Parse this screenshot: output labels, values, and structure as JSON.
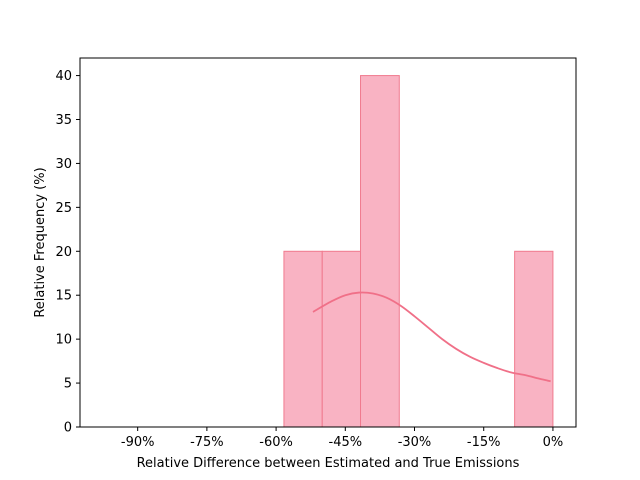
{
  "chart_data": {
    "type": "bar",
    "xlabel": "Relative Difference between Estimated and True Emissions",
    "ylabel": "Relative Frequency (%)",
    "x_tick_values": [
      -90,
      -75,
      -60,
      -45,
      -30,
      -15,
      0
    ],
    "x_tick_labels": [
      "-90%",
      "-75%",
      "-60%",
      "-45%",
      "-30%",
      "-15%",
      "0%"
    ],
    "xlim": [
      -102.5,
      5
    ],
    "y_ticks": [
      0,
      5,
      10,
      15,
      20,
      25,
      30,
      35,
      40
    ],
    "ylim": [
      0,
      42
    ],
    "bins": [
      {
        "x0": -100,
        "x1": -91.7,
        "value": 0
      },
      {
        "x0": -91.7,
        "x1": -83.3,
        "value": 0
      },
      {
        "x0": -83.3,
        "x1": -75,
        "value": 0
      },
      {
        "x0": -75,
        "x1": -66.7,
        "value": 0
      },
      {
        "x0": -66.7,
        "x1": -58.3,
        "value": 0
      },
      {
        "x0": -58.3,
        "x1": -50,
        "value": 20
      },
      {
        "x0": -50,
        "x1": -41.7,
        "value": 20
      },
      {
        "x0": -41.7,
        "x1": -33.3,
        "value": 40
      },
      {
        "x0": -33.3,
        "x1": -25,
        "value": 0
      },
      {
        "x0": -25,
        "x1": -16.7,
        "value": 0
      },
      {
        "x0": -16.7,
        "x1": -8.3,
        "value": 0
      },
      {
        "x0": -8.3,
        "x1": 0,
        "value": 20
      }
    ],
    "kde": {
      "x": [
        -52,
        -48,
        -45,
        -42,
        -39,
        -36,
        -33,
        -30,
        -27,
        -24,
        -21,
        -18,
        -15,
        -12,
        -9,
        -6,
        -3,
        -0.5
      ],
      "y": [
        13.1,
        14.3,
        15.0,
        15.3,
        15.2,
        14.7,
        13.8,
        12.6,
        11.3,
        10.0,
        8.9,
        8.0,
        7.3,
        6.7,
        6.2,
        5.9,
        5.5,
        5.2
      ]
    },
    "colors": {
      "bar_fill": "#f9b3c3",
      "bar_edge": "#f07a8e",
      "kde_line": "#f07088"
    },
    "grid": false
  }
}
